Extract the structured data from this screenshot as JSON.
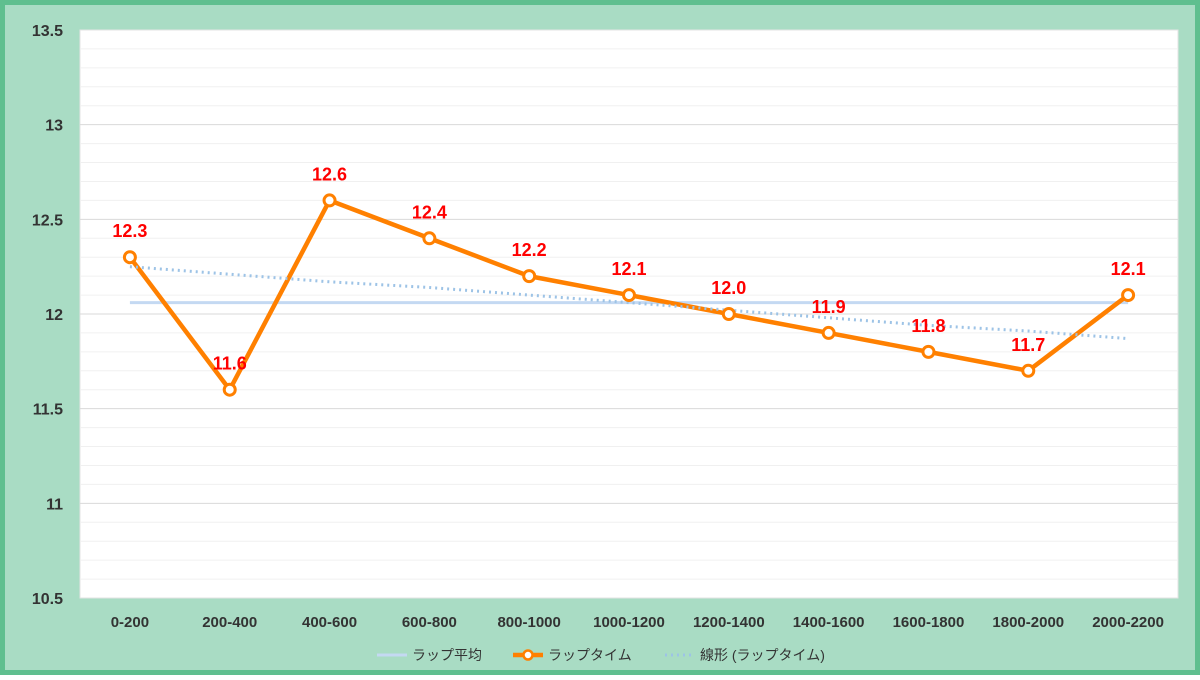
{
  "chart_data": {
    "type": "line",
    "categories": [
      "0-200",
      "200-400",
      "400-600",
      "600-800",
      "800-1000",
      "1000-1200",
      "1200-1400",
      "1400-1600",
      "1600-1800",
      "1800-2000",
      "2000-2200"
    ],
    "ylim": [
      10.5,
      13.5
    ],
    "yticks": [
      "13.5",
      "13",
      "12.5",
      "12",
      "11.5",
      "11",
      "10.5"
    ],
    "grid": true,
    "legend_position": "bottom",
    "series": [
      {
        "name": "ラップ平均",
        "kind": "average",
        "color": "#c4d9f2",
        "values": [
          12.06,
          12.06,
          12.06,
          12.06,
          12.06,
          12.06,
          12.06,
          12.06,
          12.06,
          12.06,
          12.06
        ]
      },
      {
        "name": "ラップタイム",
        "kind": "main",
        "color": "#ff8000",
        "values": [
          12.3,
          11.6,
          12.6,
          12.4,
          12.2,
          12.1,
          12.0,
          11.9,
          11.8,
          11.7,
          12.1
        ],
        "data_labels": [
          "12.3",
          "11.6",
          "12.6",
          "12.4",
          "12.2",
          "12.1",
          "12.0",
          "11.9",
          "11.8",
          "11.7",
          "12.1"
        ]
      },
      {
        "name": "線形 (ラップタイム)",
        "kind": "trend",
        "color": "#9dc3e6",
        "values": [
          12.25,
          12.21,
          12.17,
          12.14,
          12.1,
          12.06,
          12.02,
          11.98,
          11.94,
          11.91,
          11.87
        ]
      }
    ]
  }
}
